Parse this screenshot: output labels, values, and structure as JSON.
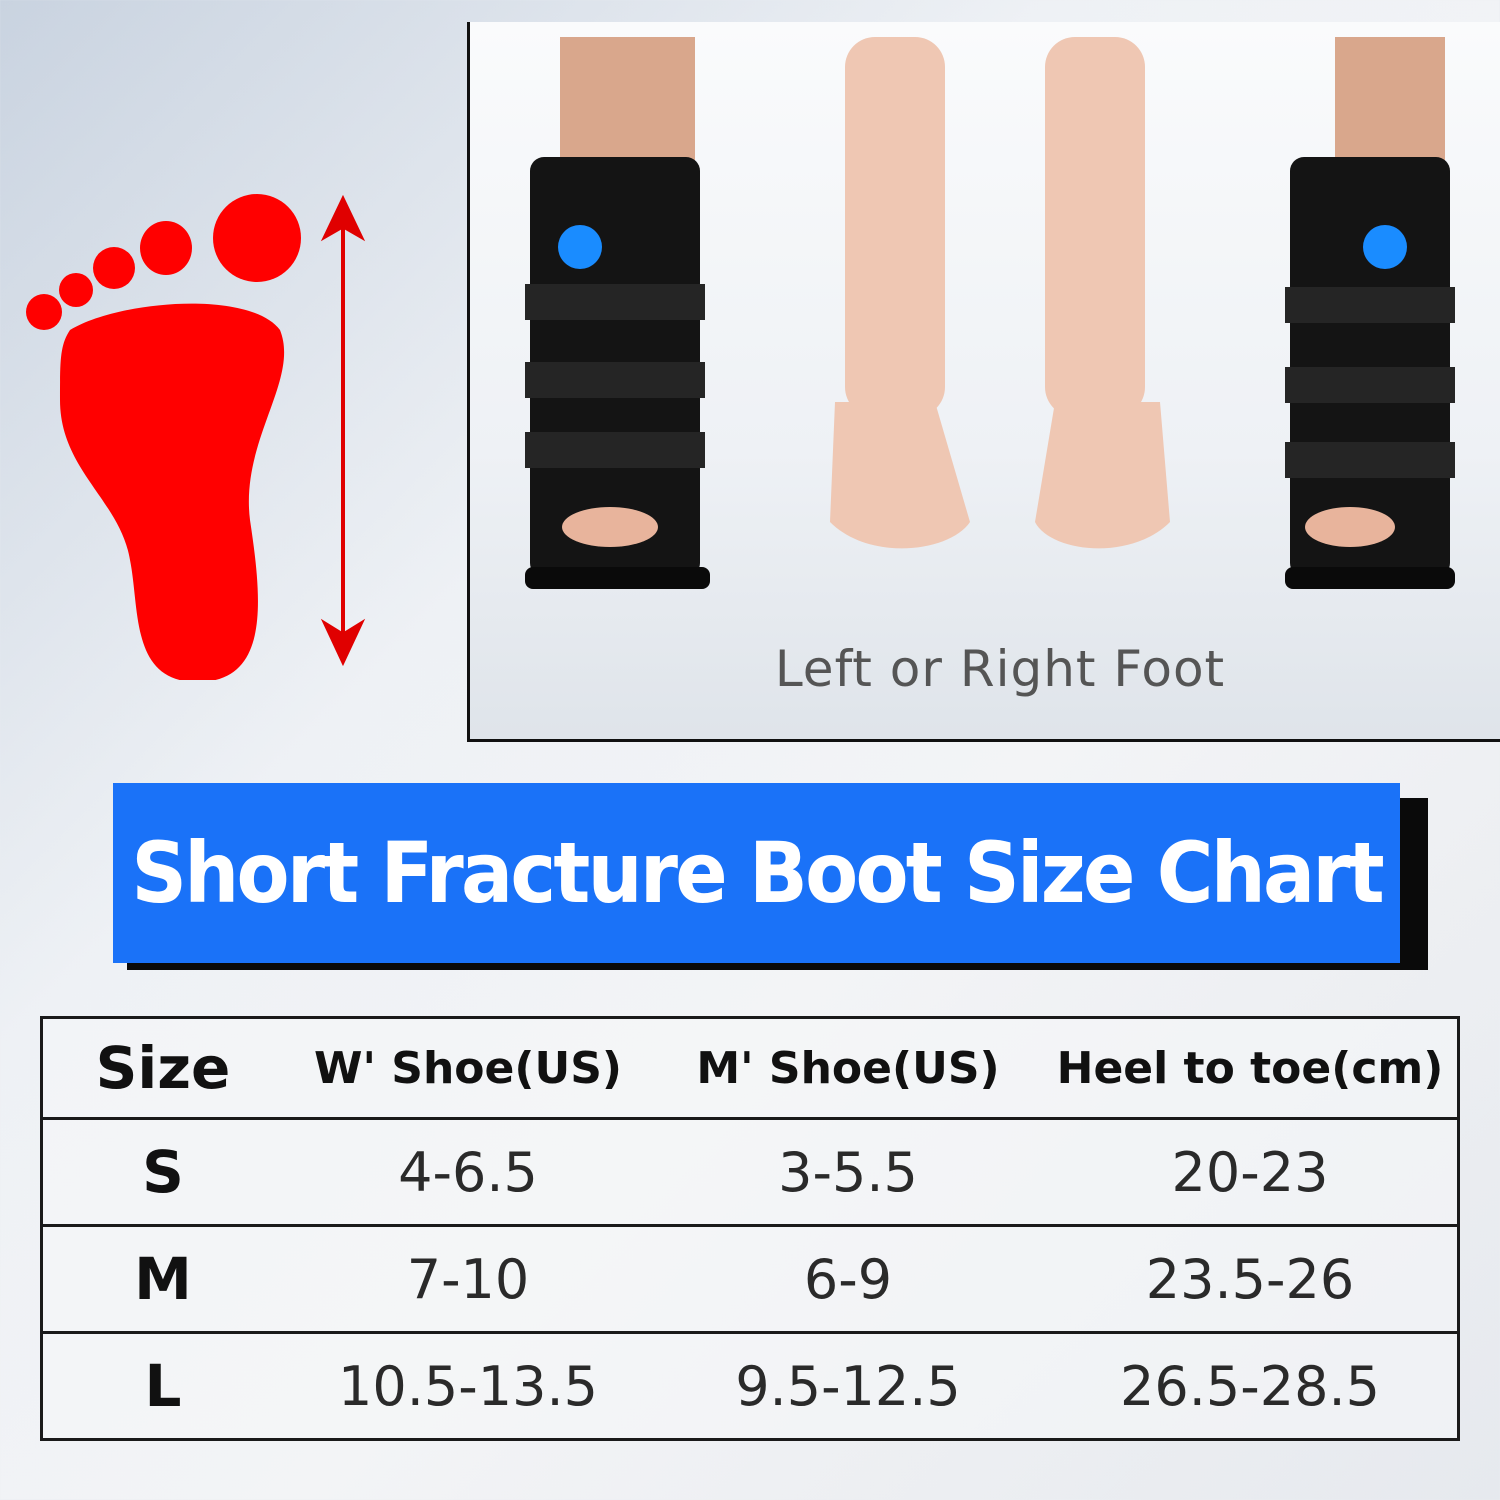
{
  "caption": "Left or Right Foot",
  "banner": {
    "title": "Short Fracture Boot Size Chart",
    "color": "#1a72f8"
  },
  "foot_icon_color": "#ff0000",
  "table": {
    "headers": [
      "Size",
      "W' Shoe(US)",
      "M' Shoe(US)",
      "Heel to toe(cm)"
    ],
    "rows": [
      [
        "S",
        "4-6.5",
        "3-5.5",
        "20-23"
      ],
      [
        "M",
        "7-10",
        "6-9",
        "23.5-26"
      ],
      [
        "L",
        "10.5-13.5",
        "9.5-12.5",
        "26.5-28.5"
      ]
    ]
  }
}
